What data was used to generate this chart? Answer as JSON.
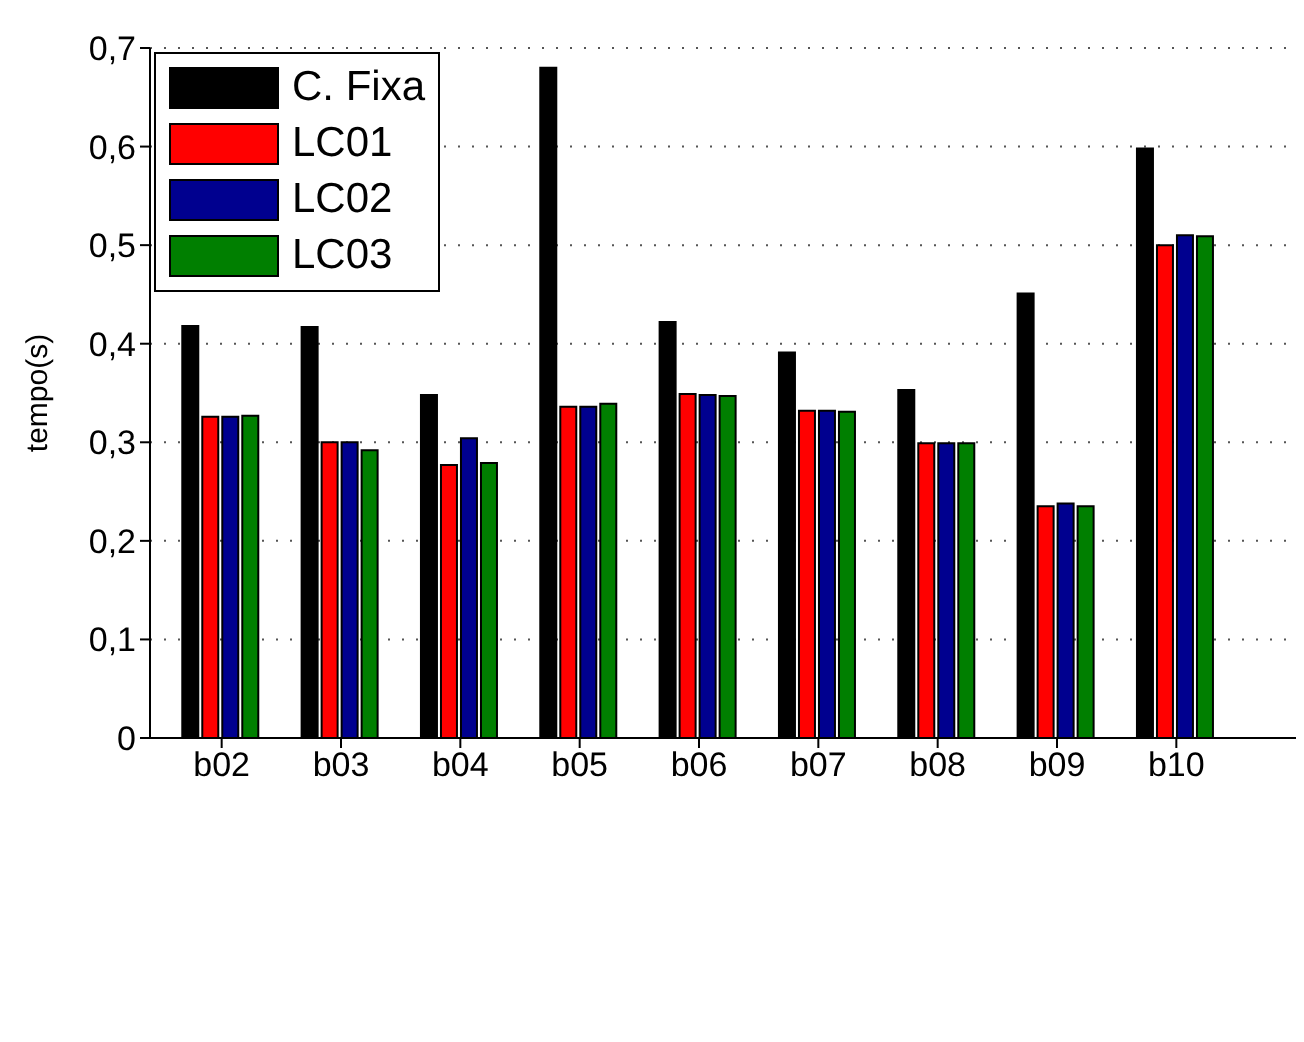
{
  "chart_data": {
    "type": "bar",
    "ylabel": "tempo(s)",
    "categories": [
      "b02",
      "b03",
      "b04",
      "b05",
      "b06",
      "b07",
      "b08",
      "b09",
      "b10"
    ],
    "series": [
      {
        "name": "C. Fixa",
        "color": "#000000",
        "values": [
          0.418,
          0.417,
          0.348,
          0.68,
          0.422,
          0.391,
          0.353,
          0.451,
          0.598
        ]
      },
      {
        "name": "LC01",
        "color": "#ff0000",
        "values": [
          0.326,
          0.3,
          0.277,
          0.336,
          0.349,
          0.332,
          0.299,
          0.235,
          0.5
        ]
      },
      {
        "name": "LC02",
        "color": "#00008f",
        "values": [
          0.326,
          0.3,
          0.304,
          0.336,
          0.348,
          0.332,
          0.299,
          0.238,
          0.51
        ]
      },
      {
        "name": "LC03",
        "color": "#007f00",
        "values": [
          0.327,
          0.292,
          0.279,
          0.339,
          0.347,
          0.331,
          0.299,
          0.235,
          0.509
        ]
      }
    ],
    "ylim": [
      0,
      0.7
    ],
    "yticks": [
      0,
      {
        "value": 0.1,
        "label": "0,1"
      },
      {
        "value": 0.2,
        "label": "0,2"
      },
      {
        "value": 0.3,
        "label": "0,3"
      },
      {
        "value": 0.4,
        "label": "0,4"
      },
      {
        "value": 0.5,
        "label": "0,5"
      },
      {
        "value": 0.6,
        "label": "0,6"
      },
      {
        "value": 0.7,
        "label": "0,7"
      }
    ],
    "grid": "y",
    "legend": "top left"
  }
}
